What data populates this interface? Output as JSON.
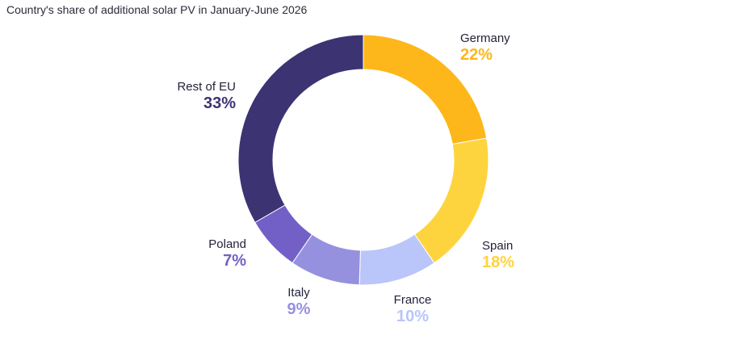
{
  "title": "Country's share of additional solar PV in January-June 2026",
  "chart_data": {
    "type": "pie",
    "donut": true,
    "title": "Country's share of additional solar PV in January-June 2026",
    "categories": [
      "Germany",
      "Spain",
      "France",
      "Italy",
      "Poland",
      "Rest of EU"
    ],
    "values": [
      22,
      18,
      10,
      9,
      7,
      33
    ],
    "value_labels": [
      "22%",
      "18%",
      "10%",
      "9%",
      "7%",
      "33%"
    ],
    "unit": "%",
    "colors": [
      "#FDB71A",
      "#FED43E",
      "#BAC5FA",
      "#9691DE",
      "#7260C7",
      "#3C3373"
    ]
  }
}
